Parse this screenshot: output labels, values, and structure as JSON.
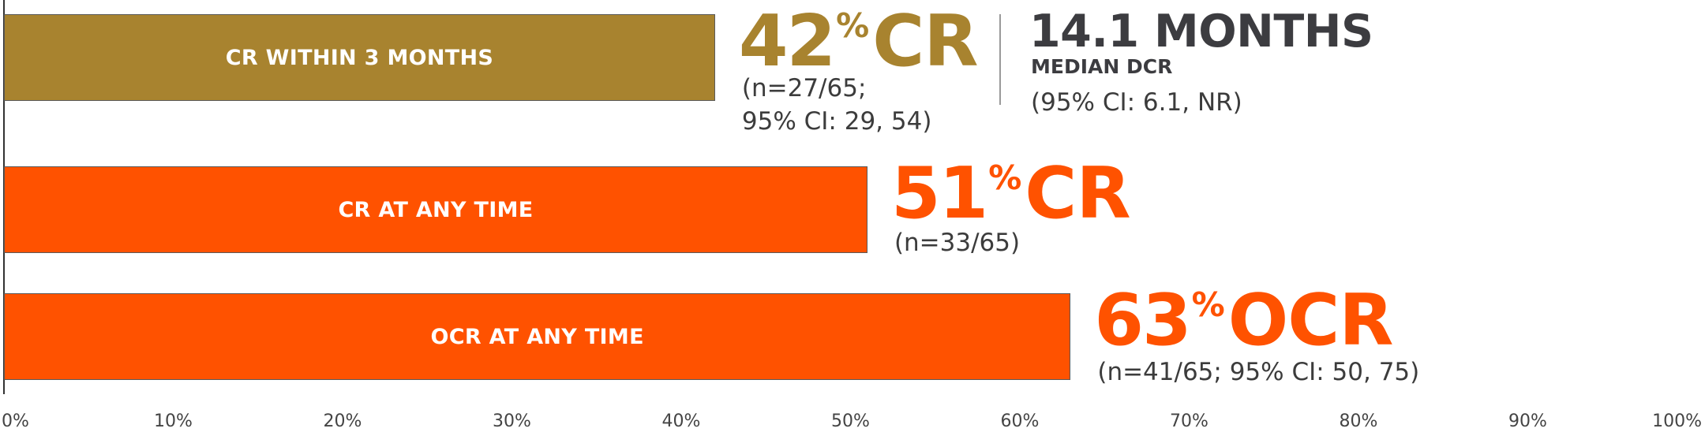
{
  "chart_data": {
    "type": "bar",
    "orientation": "horizontal",
    "xlim": [
      0,
      100
    ],
    "x_ticks": [
      "0%",
      "10%",
      "20%",
      "30%",
      "40%",
      "50%",
      "60%",
      "70%",
      "80%",
      "90%",
      "100%"
    ],
    "grid": false,
    "bars": [
      {
        "label": "CR WITHIN 3 MONTHS",
        "value": 42,
        "color": "#a8832f",
        "value_number": "42",
        "value_unit": "CR",
        "note": "(n=27/65;\n95% CI: 29, 54)"
      },
      {
        "label": "CR AT ANY TIME",
        "value": 51,
        "color": "#ff5200",
        "value_number": "51",
        "value_unit": "CR",
        "note": "(n=33/65)"
      },
      {
        "label": "OCR AT ANY TIME",
        "value": 63,
        "color": "#ff5200",
        "value_number": "63",
        "value_unit": "OCR",
        "note": "(n=41/65; 95% CI: 50, 75)"
      }
    ],
    "percent_symbol": "%",
    "annotation": {
      "value": "14.1 MONTHS",
      "label": "MEDIAN DCR",
      "note": "(95% CI: 6.1, NR)",
      "color": "#3c3c40"
    }
  }
}
